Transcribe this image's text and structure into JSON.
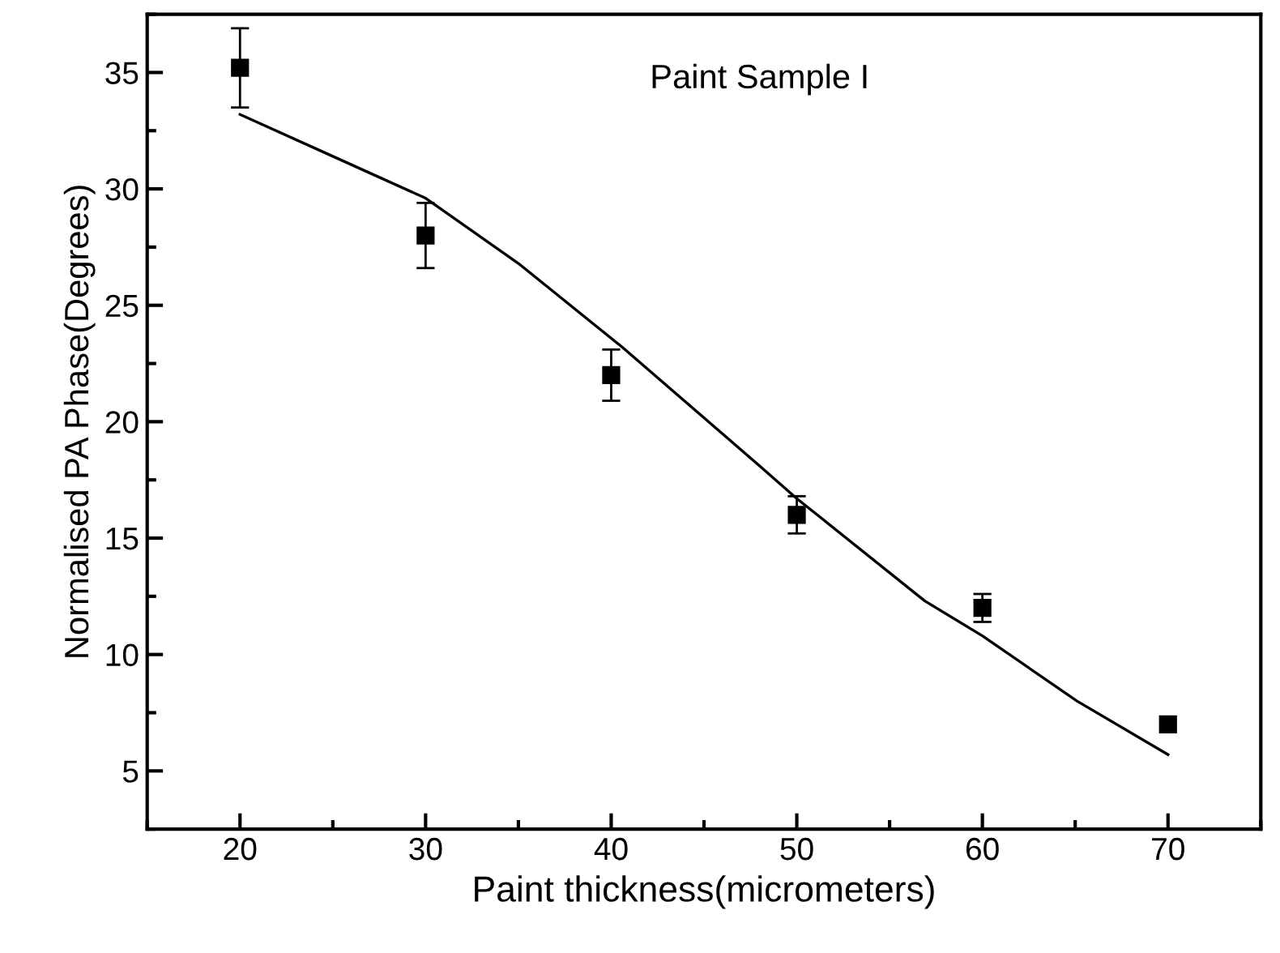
{
  "chart_data": {
    "type": "scatter",
    "xlabel": "Paint thickness(micrometers)",
    "ylabel": "Normalised PA Phase(Degrees)",
    "annotations": [
      "Paint Sample I"
    ],
    "xlim": [
      15,
      75
    ],
    "xticks": [
      20,
      30,
      40,
      50,
      60,
      70
    ],
    "ylim": [
      2.5,
      37.5
    ],
    "yticks": [
      5,
      10,
      15,
      20,
      25,
      30,
      35
    ],
    "marker": "square",
    "grid": false,
    "legend": false,
    "series": [
      {
        "color": "#000000",
        "x": [
          20,
          30,
          40,
          50,
          60,
          70
        ],
        "values": [
          35.2,
          28.0,
          22.0,
          16.0,
          12.0,
          7.0
        ],
        "errors": [
          1.7,
          1.4,
          1.1,
          0.8,
          0.6,
          null
        ]
      },
      {
        "type": "line",
        "color": "#000000",
        "marker": "none",
        "line_style": "solid",
        "x": [
          20,
          25,
          30,
          35,
          40.6,
          48,
          50,
          56.9,
          60,
          65.1,
          70
        ],
        "values": [
          33.2,
          31.4,
          29.6,
          26.8,
          23.2,
          18.1,
          16.7,
          12.3,
          10.8,
          8.0,
          5.7
        ]
      }
    ]
  }
}
